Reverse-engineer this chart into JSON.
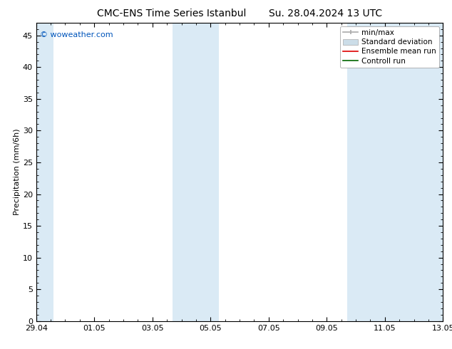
{
  "title_left": "CMC-ENS Time Series Istanbul",
  "title_right": "Su. 28.04.2024 13 UTC",
  "ylabel": "Precipitation (mm/6h)",
  "watermark": "© woweather.com",
  "watermark_color": "#0055bb",
  "xlim_left": 0,
  "xlim_right": 14,
  "ylim_bottom": 0,
  "ylim_top": 47,
  "yticks": [
    0,
    5,
    10,
    15,
    20,
    25,
    30,
    35,
    40,
    45
  ],
  "xtick_labels": [
    "29.04",
    "01.05",
    "03.05",
    "05.05",
    "07.05",
    "09.05",
    "11.05",
    "13.05"
  ],
  "xtick_positions": [
    0,
    2,
    4,
    6,
    8,
    10,
    12,
    14
  ],
  "background_color": "#ffffff",
  "plot_bg_color": "#ffffff",
  "shaded_bands": [
    {
      "x_start": -0.1,
      "x_end": 0.6,
      "color": "#daeaf5"
    },
    {
      "x_start": 4.7,
      "x_end": 5.5,
      "color": "#daeaf5"
    },
    {
      "x_start": 5.5,
      "x_end": 6.3,
      "color": "#daeaf5"
    },
    {
      "x_start": 10.7,
      "x_end": 11.5,
      "color": "#daeaf5"
    },
    {
      "x_start": 11.5,
      "x_end": 14.1,
      "color": "#daeaf5"
    }
  ],
  "legend_minmax_color": "#aaaaaa",
  "legend_std_color": "#ccdde8",
  "legend_ens_color": "#dd0000",
  "legend_ctrl_color": "#006600",
  "font_family": "DejaVu Sans",
  "title_fontsize": 10,
  "tick_fontsize": 8,
  "ylabel_fontsize": 8,
  "legend_fontsize": 7.5,
  "watermark_fontsize": 8
}
